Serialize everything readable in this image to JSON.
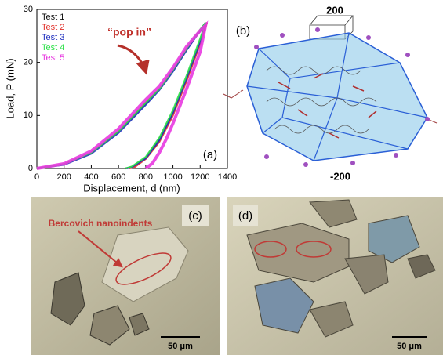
{
  "chart_data": {
    "type": "line",
    "panel_label": "(a)",
    "annotation": "“pop in”",
    "xlabel": "Displacement, d (nm)",
    "ylabel": "Load, P (mN)",
    "xlim": [
      0,
      1400
    ],
    "xticks": [
      0,
      200,
      400,
      600,
      800,
      1000,
      1200,
      1400
    ],
    "ylim": [
      0,
      30
    ],
    "yticks": [
      0,
      10,
      20,
      30
    ],
    "grid": false,
    "legend": "upper left",
    "series": [
      {
        "name": "Test 1",
        "color": "#111111",
        "x": [
          0,
          200,
          400,
          600,
          800,
          900,
          1000,
          1100,
          1200,
          1240,
          1200,
          1100,
          1000,
          900,
          800,
          700,
          650
        ],
        "values": [
          0,
          0.8,
          3,
          7,
          12.3,
          15,
          18.5,
          22.5,
          26,
          27.5,
          24,
          17,
          10.5,
          5.5,
          2,
          0.3,
          0
        ]
      },
      {
        "name": "Test 2",
        "color": "#e0302a",
        "x": [
          0,
          200,
          400,
          600,
          800,
          900,
          1000,
          1100,
          1200,
          1250,
          1200,
          1100,
          1000,
          900,
          800,
          720,
          680
        ],
        "values": [
          0,
          0.8,
          3,
          7,
          12.5,
          15,
          18.6,
          22.6,
          26,
          27.5,
          23.5,
          16.5,
          10,
          5,
          1.8,
          0.3,
          0
        ]
      },
      {
        "name": "Test 3",
        "color": "#1f2fbf",
        "x": [
          0,
          200,
          400,
          600,
          800,
          900,
          1000,
          1100,
          1200,
          1240,
          1200,
          1100,
          1000,
          900,
          800,
          700,
          660
        ],
        "values": [
          0,
          0.7,
          2.8,
          6.7,
          12,
          14.8,
          18.3,
          22.3,
          26,
          27.5,
          24,
          17,
          10.5,
          5.3,
          1.9,
          0.3,
          0
        ]
      },
      {
        "name": "Test 4",
        "color": "#2ee04a",
        "x": [
          0,
          200,
          400,
          600,
          800,
          900,
          1000,
          1100,
          1200,
          1240,
          1200,
          1100,
          1000,
          900,
          800,
          700,
          650
        ],
        "values": [
          0,
          0.8,
          3,
          7,
          12.4,
          15,
          18.6,
          22.6,
          26.2,
          27.5,
          24.5,
          17.5,
          11,
          5.8,
          2.2,
          0.4,
          0
        ]
      },
      {
        "name": "Test 5",
        "color": "#e838e0",
        "x": [
          0,
          200,
          400,
          600,
          800,
          900,
          1000,
          1100,
          1200,
          1240,
          1200,
          1100,
          1000,
          950,
          900,
          850,
          800
        ],
        "values": [
          0,
          0.9,
          3.3,
          7.5,
          13,
          15.5,
          19,
          23,
          26,
          27,
          22,
          15,
          8.5,
          5.5,
          3,
          1,
          0
        ]
      }
    ]
  },
  "panel_b": {
    "label": "(b)",
    "top_label": "200",
    "bottom_label": "-200"
  },
  "panel_c": {
    "label": "(c)",
    "annotation": "Bercovich nanoindents",
    "scale_bar": "50 μm"
  },
  "panel_d": {
    "label": "(d)",
    "scale_bar": "50 μm"
  }
}
